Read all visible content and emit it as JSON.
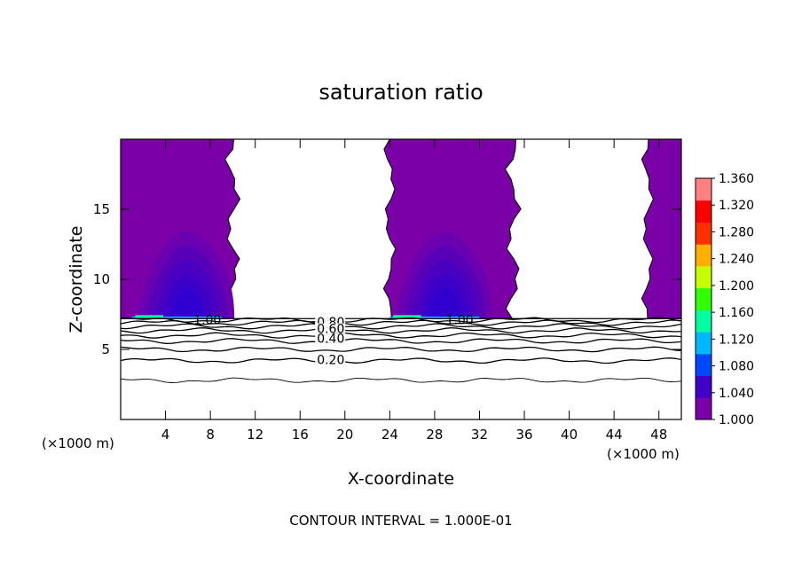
{
  "chart_data": {
    "type": "contour",
    "title": "saturation ratio",
    "xlabel": "X-coordinate",
    "ylabel": "Z-coordinate",
    "x_unit": "(×1000 m)",
    "x_unit_left": "(×1000 m)",
    "x_unit_right": "(×1000 m)",
    "xlim": [
      0,
      50
    ],
    "ylim": [
      0,
      20
    ],
    "x_ticks": [
      4,
      8,
      12,
      16,
      20,
      24,
      28,
      32,
      36,
      40,
      44,
      48
    ],
    "y_ticks": [
      5,
      10,
      15
    ],
    "footer": "CONTOUR INTERVAL = 1.000E-01",
    "colorbar": {
      "levels": [
        1.0,
        1.04,
        1.08,
        1.12,
        1.16,
        1.2,
        1.24,
        1.28,
        1.32,
        1.36
      ],
      "labels": [
        "1.000",
        "1.040",
        "1.080",
        "1.120",
        "1.160",
        "1.200",
        "1.240",
        "1.280",
        "1.320",
        "1.360"
      ],
      "colors": [
        "#7a00a8",
        "#3f00c8",
        "#0048ff",
        "#00b8ff",
        "#00ffa0",
        "#30ff00",
        "#c8ff00",
        "#ffb000",
        "#ff3000",
        "#ff0000",
        "#ff8080"
      ]
    },
    "contour_lines": [
      {
        "value": 0.2,
        "label": "0.20",
        "z": 4.2
      },
      {
        "value": 0.3,
        "label": "",
        "z": 5.0
      },
      {
        "value": 0.4,
        "label": "0.40",
        "z": 5.6
      },
      {
        "value": 0.5,
        "label": "",
        "z": 6.0
      },
      {
        "value": 0.6,
        "label": "0.60",
        "z": 6.35
      },
      {
        "value": 0.7,
        "label": "",
        "z": 6.65
      },
      {
        "value": 0.8,
        "label": "0.80",
        "z": 6.9
      },
      {
        "value": 0.9,
        "label": "",
        "z": 7.1
      },
      {
        "value": 0.1,
        "label": "",
        "z": 2.8
      }
    ],
    "inline_labels": [
      {
        "text": "1.00",
        "x": 6.5,
        "z": 7.0
      },
      {
        "text": "1.00",
        "x": 29.0,
        "z": 7.0
      },
      {
        "text": "0.80",
        "x": 17.5,
        "z": 6.85
      },
      {
        "text": "0.60",
        "x": 17.5,
        "z": 6.35
      },
      {
        "text": "0.40",
        "x": 17.5,
        "z": 5.65
      },
      {
        "text": "0.20",
        "x": 17.5,
        "z": 4.15
      }
    ],
    "supersaturated_regions": [
      {
        "x_range": [
          0,
          10
        ],
        "z_range": [
          7.2,
          20
        ],
        "core_x": 6,
        "core_z": 9
      },
      {
        "x_range": [
          24,
          35
        ],
        "z_range": [
          7.2,
          20
        ],
        "core_x": 29,
        "core_z": 9
      },
      {
        "x_range": [
          47,
          50
        ],
        "z_range": [
          7.2,
          20
        ]
      }
    ]
  }
}
